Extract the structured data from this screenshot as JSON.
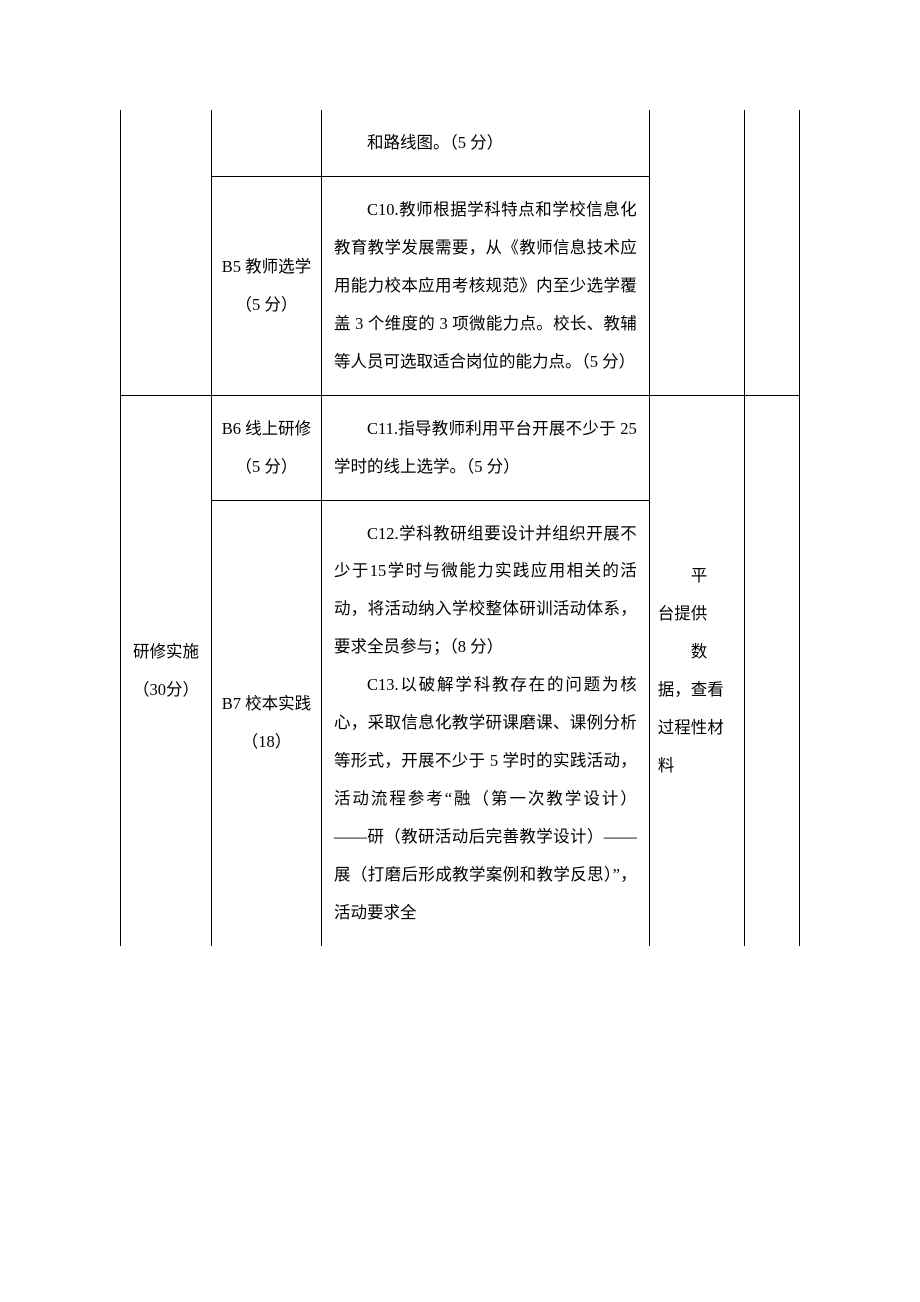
{
  "table": {
    "rows": {
      "r1": {
        "c3": "和路线图。（5 分）"
      },
      "r2": {
        "b_label": "B5 教师选学（5 分）",
        "c3": "C10.教师根据学科特点和学校信息化教育教学发展需要，从《教师信息技术应用能力校本应用考核规范》内至少选学覆盖 3 个维度的 3 项微能力点。校长、教辅等人员可选取适合岗位的能力点。（5 分）"
      },
      "r3": {
        "a_label": "研修实施（30分）",
        "b_label": "B6 线上研修（5 分）",
        "c3": "C11.指导教师利用平台开展不少于 25 学时的线上选学。（5 分）",
        "d_label_line1": "平",
        "d_label_line2": "台提供",
        "d_label_line3": "数",
        "d_label_line4": "据，查看过程性材料"
      },
      "r4": {
        "b_label": "B7 校本实践（18）",
        "c3_p1": "C12.学科教研组要设计并组织开展不少于15学时与微能力实践应用相关的活动，将活动纳入学校整体研训活动体系，要求全员参与；（8 分）",
        "c3_p2": "C13.以破解学科教存在的问题为核心，采取信息化教学研课磨课、课例分析等形式，开展不少于 5 学时的实践活动，活动流程参考“融（第一次教学设计）——研（教研活动后完善教学设计）——展（打磨后形成教学案例和教学反思）”，活动要求全"
      }
    }
  },
  "styling": {
    "border_color": "#000000",
    "background_color": "#ffffff",
    "text_color": "#000000",
    "font_size_pt": 12,
    "line_height": 2.3,
    "font_family": "SimSun"
  }
}
